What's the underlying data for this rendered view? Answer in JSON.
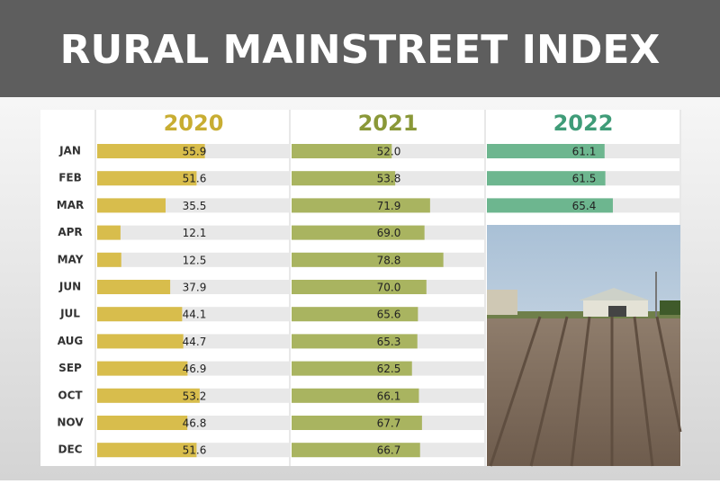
{
  "chart_data": {
    "type": "bar",
    "orientation": "horizontal",
    "title": "RURAL MAINSTREET INDEX",
    "categories": [
      "JAN",
      "FEB",
      "MAR",
      "APR",
      "MAY",
      "JUN",
      "JUL",
      "AUG",
      "SEP",
      "OCT",
      "NOV",
      "DEC"
    ],
    "xlim": [
      0,
      100
    ],
    "series": [
      {
        "name": "2020",
        "color": "#d8bd4c",
        "header_color": "#c8ad32",
        "values": [
          55.9,
          51.6,
          35.5,
          12.1,
          12.5,
          37.9,
          44.1,
          44.7,
          46.9,
          53.2,
          46.8,
          51.6
        ],
        "value_labels": [
          "55.9",
          "51.6",
          "35.5",
          "12.1",
          "12.5",
          "37.9",
          "44.1",
          "44.7",
          "46.9",
          "53.2",
          "46.8",
          "51.6"
        ]
      },
      {
        "name": "2021",
        "color": "#a9b460",
        "header_color": "#8a9838",
        "values": [
          52,
          53.8,
          71.9,
          69,
          78.8,
          70,
          65.6,
          65.3,
          62.5,
          66.1,
          67.7,
          66.7
        ],
        "value_labels": [
          "52.0",
          "53.8",
          "71.9",
          "69.0",
          "78.8",
          "70.0",
          "65.6",
          "65.3",
          "62.5",
          "66.1",
          "67.7",
          "66.7"
        ]
      },
      {
        "name": "2022",
        "color": "#6db68f",
        "header_color": "#3f9c78",
        "values": [
          61.1,
          61.5,
          65.4,
          null,
          null,
          null,
          null,
          null,
          null,
          null,
          null,
          null
        ],
        "value_labels": [
          "61.1",
          "61.5",
          "65.4",
          null,
          null,
          null,
          null,
          null,
          null,
          null,
          null,
          null
        ]
      }
    ]
  }
}
